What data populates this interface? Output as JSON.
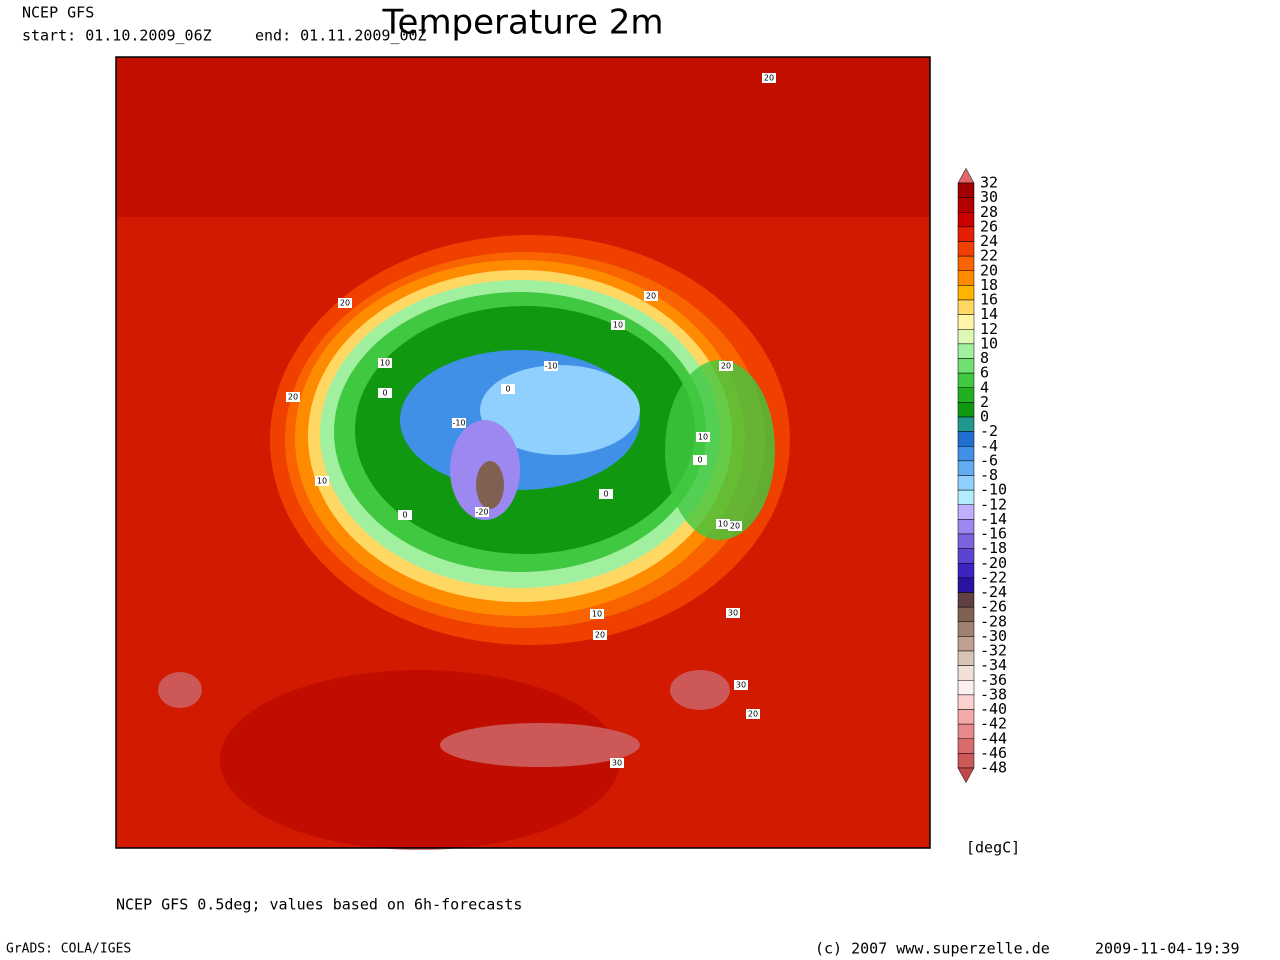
{
  "header": {
    "model": "NCEP GFS",
    "start": "start: 01.10.2009_06Z",
    "end": "end: 01.11.2009_00Z",
    "title": "Temperature 2m"
  },
  "map": {
    "contour_labels": [
      "20",
      "20",
      "20",
      "10",
      "10",
      "-10",
      "0",
      "20",
      "20",
      "0",
      "-10",
      "10",
      "0",
      "10",
      "0",
      "-20",
      "0",
      "10",
      "20",
      "30",
      "10",
      "20",
      "30",
      "20",
      "30"
    ]
  },
  "colorbar": {
    "labels": [
      32,
      30,
      28,
      26,
      24,
      22,
      20,
      18,
      16,
      14,
      12,
      10,
      8,
      6,
      4,
      2,
      0,
      -2,
      -4,
      -6,
      -8,
      -10,
      -12,
      -14,
      -16,
      -18,
      -20,
      -22,
      -24,
      -26,
      -28,
      -30,
      -32,
      -34,
      -36,
      -38,
      -40,
      -42,
      -44,
      -46,
      -48
    ],
    "colors": [
      "#e06868",
      "#a00000",
      "#b40000",
      "#cc0000",
      "#e41e00",
      "#f04000",
      "#fa6400",
      "#ff8c00",
      "#ffb400",
      "#ffd864",
      "#fff4a8",
      "#dcf8b4",
      "#a0f0a0",
      "#70e070",
      "#40c840",
      "#20b020",
      "#109810",
      "#209890",
      "#2070d0",
      "#4090e8",
      "#64acf0",
      "#90d0ff",
      "#b4ecff",
      "#c0b0ff",
      "#9c88f0",
      "#7c64e0",
      "#5c44d0",
      "#3c24c0",
      "#2814a0",
      "#604040",
      "#806050",
      "#a08070",
      "#c0a090",
      "#d8c4b4",
      "#f0e0d8",
      "#fff0f0",
      "#ffd0d0",
      "#f4a8a8",
      "#e88888",
      "#d86c6c",
      "#cc5858",
      "#c04848"
    ],
    "unit": "[degC]"
  },
  "footer": {
    "note": "NCEP GFS 0.5deg; values based on 6h-forecasts",
    "software": "GrADS: COLA/IGES",
    "copyright": "(c) 2007 www.superzelle.de",
    "timestamp": "2009-11-04-19:39"
  }
}
